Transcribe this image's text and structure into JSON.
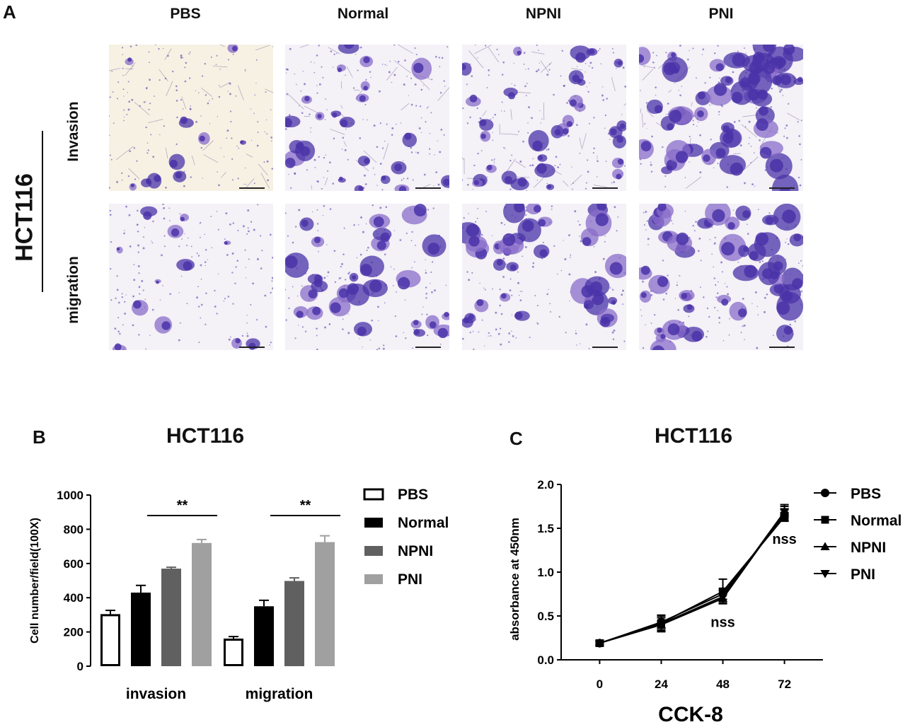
{
  "panelA": {
    "letter": "A",
    "columns": [
      "PBS",
      "Normal",
      "NPNI",
      "PNI"
    ],
    "rows": [
      "Invasion",
      "migration"
    ],
    "cell_line": "HCT116",
    "colors": {
      "stain_dark": "#4a33a8",
      "stain_mid": "#8a6cc9",
      "bg_light": "#f4f1f7",
      "bg_warm": "#f6f1e3"
    }
  },
  "panelB": {
    "letter": "B"
  },
  "panelC": {
    "letter": "C"
  },
  "chart_data": [
    {
      "type": "bar",
      "title": "HCT116",
      "ylabel": "Cell number/field(100X)",
      "ylim": [
        0,
        1000
      ],
      "yticks": [
        0,
        200,
        400,
        600,
        800,
        1000
      ],
      "categories": [
        "invasion",
        "migration"
      ],
      "series": [
        {
          "name": "PBS",
          "values": [
            298,
            155
          ],
          "errors": [
            28,
            18
          ],
          "fill": "#ffffff",
          "stroke": "#000000"
        },
        {
          "name": "Normal",
          "values": [
            430,
            350
          ],
          "errors": [
            42,
            35
          ],
          "fill": "#000000",
          "stroke": "#000000"
        },
        {
          "name": "NPNI",
          "values": [
            570,
            498
          ],
          "errors": [
            8,
            18
          ],
          "fill": "#606060",
          "stroke": "#606060"
        },
        {
          "name": "PNI",
          "values": [
            720,
            725
          ],
          "errors": [
            20,
            37
          ],
          "fill": "#a0a0a0",
          "stroke": "#a0a0a0"
        }
      ],
      "significance": [
        {
          "category": "invasion",
          "label": "**"
        },
        {
          "category": "migration",
          "label": "**"
        }
      ]
    },
    {
      "type": "line",
      "title": "HCT116",
      "xlabel": "CCK-8",
      "ylabel": "absorbance at 450nm",
      "x": [
        0,
        24,
        48,
        72
      ],
      "xlim": [
        -15,
        87
      ],
      "ylim": [
        0,
        2.0
      ],
      "yticks": [
        "0.0",
        "0.5",
        "1.0",
        "1.5",
        "2.0"
      ],
      "series": [
        {
          "name": "PBS",
          "marker": "circle",
          "values": [
            0.19,
            0.43,
            0.75,
            1.66
          ],
          "errors": [
            0.02,
            0.07,
            0.06,
            0.05
          ]
        },
        {
          "name": "Normal",
          "marker": "square",
          "values": [
            0.19,
            0.42,
            0.78,
            1.63
          ],
          "errors": [
            0.02,
            0.09,
            0.14,
            0.05
          ]
        },
        {
          "name": "NPNI",
          "marker": "triangle-up",
          "values": [
            0.19,
            0.4,
            0.7,
            1.68
          ],
          "errors": [
            0.02,
            0.08,
            0.06,
            0.09
          ]
        },
        {
          "name": "PNI",
          "marker": "triangle-down",
          "values": [
            0.19,
            0.41,
            0.72,
            1.69
          ],
          "errors": [
            0.02,
            0.07,
            0.07,
            0.06
          ]
        }
      ],
      "annotations": [
        {
          "x": 48,
          "text": "nss"
        },
        {
          "x": 72,
          "text": "nss"
        }
      ]
    }
  ]
}
